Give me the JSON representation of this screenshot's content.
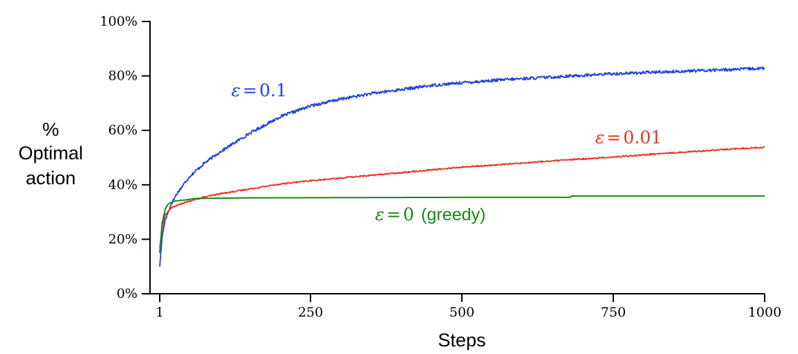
{
  "chart_data": {
    "type": "line",
    "xlabel": "Steps",
    "ylabel_lines": [
      "%",
      "Optimal",
      "action"
    ],
    "xlim": [
      1,
      1000
    ],
    "ylim": [
      0,
      100
    ],
    "x_ticks": [
      1,
      250,
      500,
      750,
      1000
    ],
    "x_tick_labels": [
      "1",
      "250",
      "500",
      "750",
      "1000"
    ],
    "y_ticks": [
      0,
      20,
      40,
      60,
      80,
      100
    ],
    "y_tick_labels": [
      "0%",
      "20%",
      "40%",
      "60%",
      "80%",
      "100%"
    ],
    "grid": false,
    "series": [
      {
        "name": "ε = 0.1",
        "label": {
          "symbol": "ε",
          "eq": "=",
          "value": "0.1",
          "suffix": ""
        },
        "color": "#1f3fe0",
        "points": [
          [
            1,
            10
          ],
          [
            5,
            21
          ],
          [
            10,
            27
          ],
          [
            20,
            33
          ],
          [
            30,
            37
          ],
          [
            40,
            40
          ],
          [
            50,
            43
          ],
          [
            75,
            48
          ],
          [
            100,
            52
          ],
          [
            150,
            59
          ],
          [
            200,
            65
          ],
          [
            250,
            69
          ],
          [
            300,
            71.5
          ],
          [
            350,
            73.5
          ],
          [
            400,
            75
          ],
          [
            450,
            76.5
          ],
          [
            500,
            77.5
          ],
          [
            550,
            78.3
          ],
          [
            600,
            79
          ],
          [
            650,
            79.6
          ],
          [
            700,
            80.2
          ],
          [
            750,
            80.8
          ],
          [
            800,
            81.2
          ],
          [
            850,
            81.6
          ],
          [
            900,
            82
          ],
          [
            950,
            82.4
          ],
          [
            1000,
            82.8
          ]
        ]
      },
      {
        "name": "ε = 0.01",
        "label": {
          "symbol": "ε",
          "eq": "=",
          "value": "0.01",
          "suffix": ""
        },
        "color": "#e8321e",
        "points": [
          [
            1,
            17
          ],
          [
            5,
            24
          ],
          [
            10,
            29
          ],
          [
            20,
            31.5
          ],
          [
            30,
            32.5
          ],
          [
            50,
            34
          ],
          [
            75,
            35.5
          ],
          [
            100,
            36.7
          ],
          [
            150,
            38.5
          ],
          [
            200,
            40.3
          ],
          [
            250,
            41.5
          ],
          [
            300,
            42.5
          ],
          [
            350,
            43.5
          ],
          [
            400,
            44.5
          ],
          [
            450,
            45.5
          ],
          [
            500,
            46.5
          ],
          [
            550,
            47.2
          ],
          [
            600,
            48
          ],
          [
            650,
            48.8
          ],
          [
            700,
            49.5
          ],
          [
            750,
            50.2
          ],
          [
            800,
            51
          ],
          [
            850,
            51.8
          ],
          [
            900,
            52.5
          ],
          [
            950,
            53.2
          ],
          [
            1000,
            53.8
          ]
        ]
      },
      {
        "name": "ε = 0 (greedy)",
        "label": {
          "symbol": "ε",
          "eq": "=",
          "value": "0",
          "suffix": "(greedy)"
        },
        "color": "#138a13",
        "points": [
          [
            1,
            15
          ],
          [
            5,
            26
          ],
          [
            10,
            31
          ],
          [
            15,
            33
          ],
          [
            25,
            34
          ],
          [
            45,
            34.5
          ],
          [
            60,
            35
          ],
          [
            150,
            35.2
          ],
          [
            300,
            35.3
          ],
          [
            500,
            35.4
          ],
          [
            678,
            35.4
          ],
          [
            682,
            35.9
          ],
          [
            1000,
            35.9
          ]
        ]
      }
    ]
  }
}
